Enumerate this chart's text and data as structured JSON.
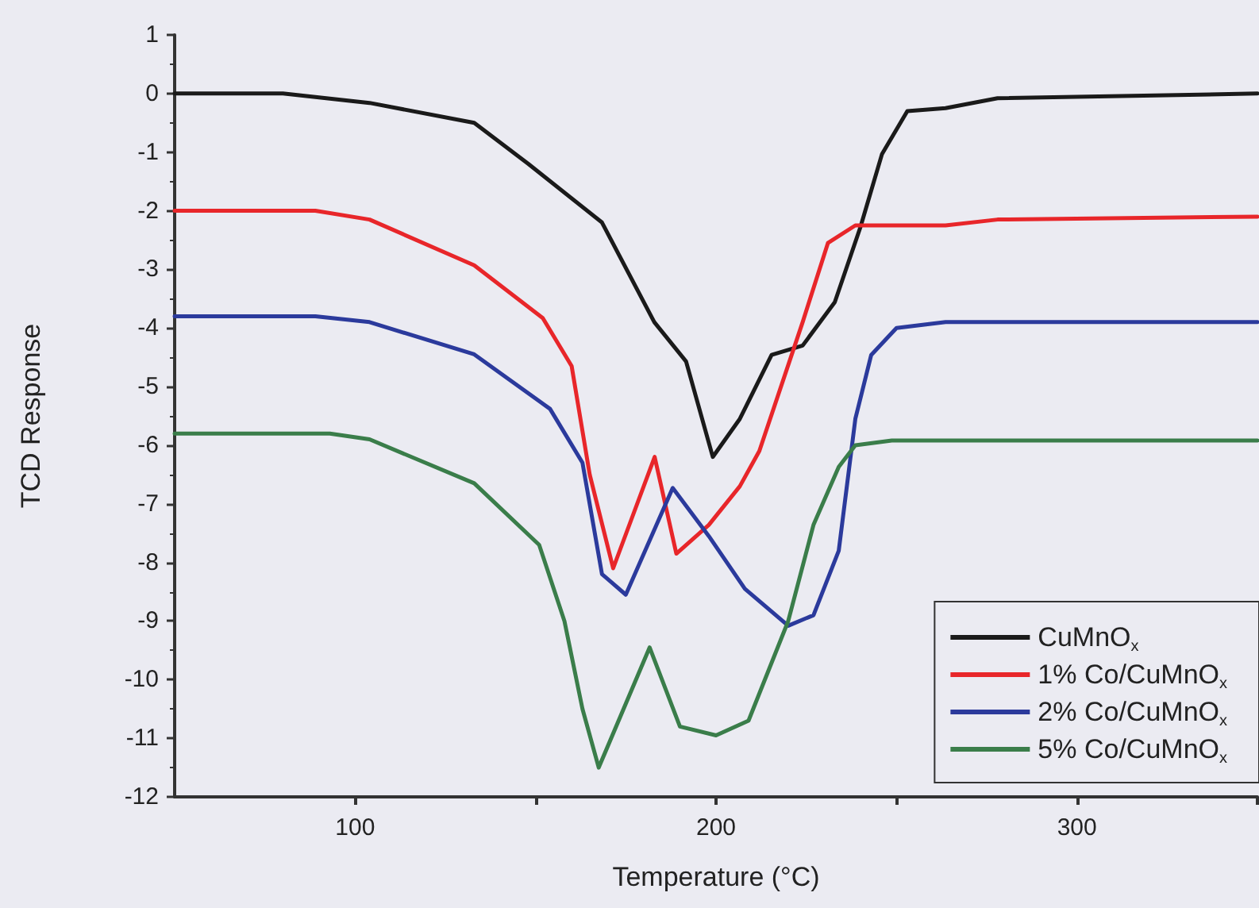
{
  "chart_data": {
    "type": "line",
    "xlabel": "Temperature (°C)",
    "ylabel": "TCD Response",
    "xlim": [
      50,
      350
    ],
    "xticks": [
      100,
      {
        "value": 150,
        "label": null
      },
      200,
      {
        "value": 250,
        "label": null
      },
      300,
      {
        "value": 350,
        "label": null
      }
    ],
    "ylim": [
      -12,
      1
    ],
    "yticks": [
      -12,
      -11,
      -10,
      -9,
      -8,
      -7,
      -6,
      -5,
      -4,
      -3,
      -2,
      -1,
      0,
      1
    ],
    "grid": false,
    "legend": "bottom right",
    "marker": "none",
    "line_style": "solid",
    "series": [
      {
        "name": "CuMnO$_{x}$",
        "color": "#1a1a1a",
        "x": [
          50,
          80,
          104,
          133,
          148,
          168.4,
          182.9,
          191.7,
          199.1,
          206.6,
          215.4,
          224,
          232.9,
          240,
          246,
          253,
          263.6,
          278,
          350
        ],
        "values": [
          0,
          0,
          -0.16,
          -0.5,
          -1.2,
          -2.2,
          -3.9,
          -4.57,
          -6.2,
          -5.55,
          -4.46,
          -4.3,
          -3.56,
          -2.28,
          -1.03,
          -0.3,
          -0.25,
          -0.08,
          0
        ]
      },
      {
        "name": "1% Co/CuMnO$_{x}$",
        "color": "#e8262a",
        "x": [
          50,
          89,
          104,
          133,
          152,
          160,
          165,
          171.5,
          183,
          189,
          198,
          206.6,
          212,
          224,
          231,
          238.6,
          263.6,
          278,
          350
        ],
        "values": [
          -2,
          -2,
          -2.15,
          -2.93,
          -3.83,
          -4.65,
          -6.5,
          -8.1,
          -6.2,
          -7.85,
          -7.36,
          -6.7,
          -6.1,
          -3.9,
          -2.55,
          -2.25,
          -2.25,
          -2.15,
          -2.1
        ]
      },
      {
        "name": "2% Co/CuMnO$_{x}$",
        "color": "#2b3a9c",
        "x": [
          50,
          89,
          104,
          133,
          154,
          163,
          168.4,
          175,
          188,
          198,
          208,
          220,
          227,
          234,
          238.6,
          243,
          250,
          263.6,
          350
        ],
        "values": [
          -3.8,
          -3.8,
          -3.9,
          -4.45,
          -5.38,
          -6.3,
          -8.2,
          -8.55,
          -6.73,
          -7.55,
          -8.45,
          -9.08,
          -8.9,
          -7.8,
          -5.55,
          -4.46,
          -4.0,
          -3.9,
          -3.9
        ]
      },
      {
        "name": "5% Co/CuMnO$_{x}$",
        "color": "#3a7d4a",
        "x": [
          50,
          93,
          104,
          133,
          151,
          158,
          163,
          167.5,
          181.6,
          190,
          200,
          209,
          220,
          227,
          234,
          238.6,
          248.7,
          350
        ],
        "values": [
          -5.8,
          -5.8,
          -5.9,
          -6.65,
          -7.7,
          -9.0,
          -10.5,
          -11.5,
          -9.45,
          -10.8,
          -10.95,
          -10.7,
          -9.0,
          -7.36,
          -6.37,
          -6.0,
          -5.92,
          -5.92
        ]
      }
    ]
  }
}
